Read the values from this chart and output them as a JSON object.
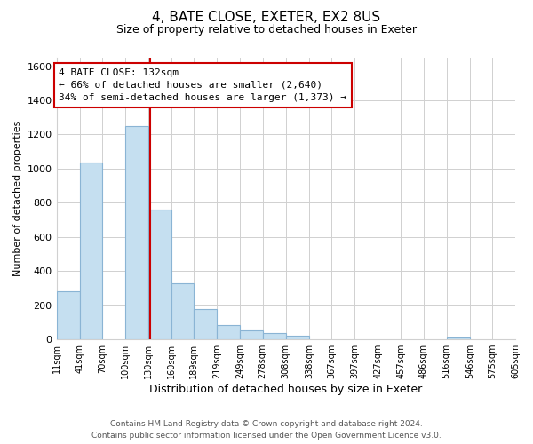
{
  "title": "4, BATE CLOSE, EXETER, EX2 8US",
  "subtitle": "Size of property relative to detached houses in Exeter",
  "xlabel": "Distribution of detached houses by size in Exeter",
  "ylabel": "Number of detached properties",
  "bar_lefts": [
    11,
    41,
    70,
    100,
    130,
    160,
    189,
    219,
    249,
    278,
    308,
    338,
    367,
    397,
    427,
    457,
    486,
    516,
    546,
    575
  ],
  "bar_rights": [
    41,
    70,
    100,
    130,
    160,
    189,
    219,
    249,
    278,
    308,
    338,
    367,
    397,
    427,
    457,
    486,
    516,
    546,
    575,
    605
  ],
  "bar_heights": [
    280,
    1035,
    0,
    1250,
    760,
    330,
    175,
    85,
    50,
    38,
    22,
    0,
    0,
    0,
    0,
    0,
    0,
    12,
    0,
    0
  ],
  "bar_color": "#c5dff0",
  "bar_edgecolor": "#8ab4d4",
  "vline_x": 132,
  "vline_color": "#cc0000",
  "ylim": [
    0,
    1650
  ],
  "xlim_left": 11,
  "xlim_right": 605,
  "annotation_text_line1": "4 BATE CLOSE: 132sqm",
  "annotation_text_line2": "← 66% of detached houses are smaller (2,640)",
  "annotation_text_line3": "34% of semi-detached houses are larger (1,373) →",
  "footer_line1": "Contains HM Land Registry data © Crown copyright and database right 2024.",
  "footer_line2": "Contains public sector information licensed under the Open Government Licence v3.0.",
  "tick_positions": [
    11,
    41,
    70,
    100,
    130,
    160,
    189,
    219,
    249,
    278,
    308,
    338,
    367,
    397,
    427,
    457,
    486,
    516,
    546,
    575,
    605
  ],
  "tick_labels": [
    "11sqm",
    "41sqm",
    "70sqm",
    "100sqm",
    "130sqm",
    "160sqm",
    "189sqm",
    "219sqm",
    "249sqm",
    "278sqm",
    "308sqm",
    "338sqm",
    "367sqm",
    "397sqm",
    "427sqm",
    "457sqm",
    "486sqm",
    "516sqm",
    "546sqm",
    "575sqm",
    "605sqm"
  ],
  "yticks": [
    0,
    200,
    400,
    600,
    800,
    1000,
    1200,
    1400,
    1600
  ],
  "background_color": "#ffffff",
  "grid_color": "#d0d0d0",
  "title_fontsize": 11,
  "subtitle_fontsize": 9,
  "xlabel_fontsize": 9,
  "ylabel_fontsize": 8,
  "tick_fontsize": 7,
  "ytick_fontsize": 8,
  "annotation_fontsize": 8,
  "footer_fontsize": 6.5
}
